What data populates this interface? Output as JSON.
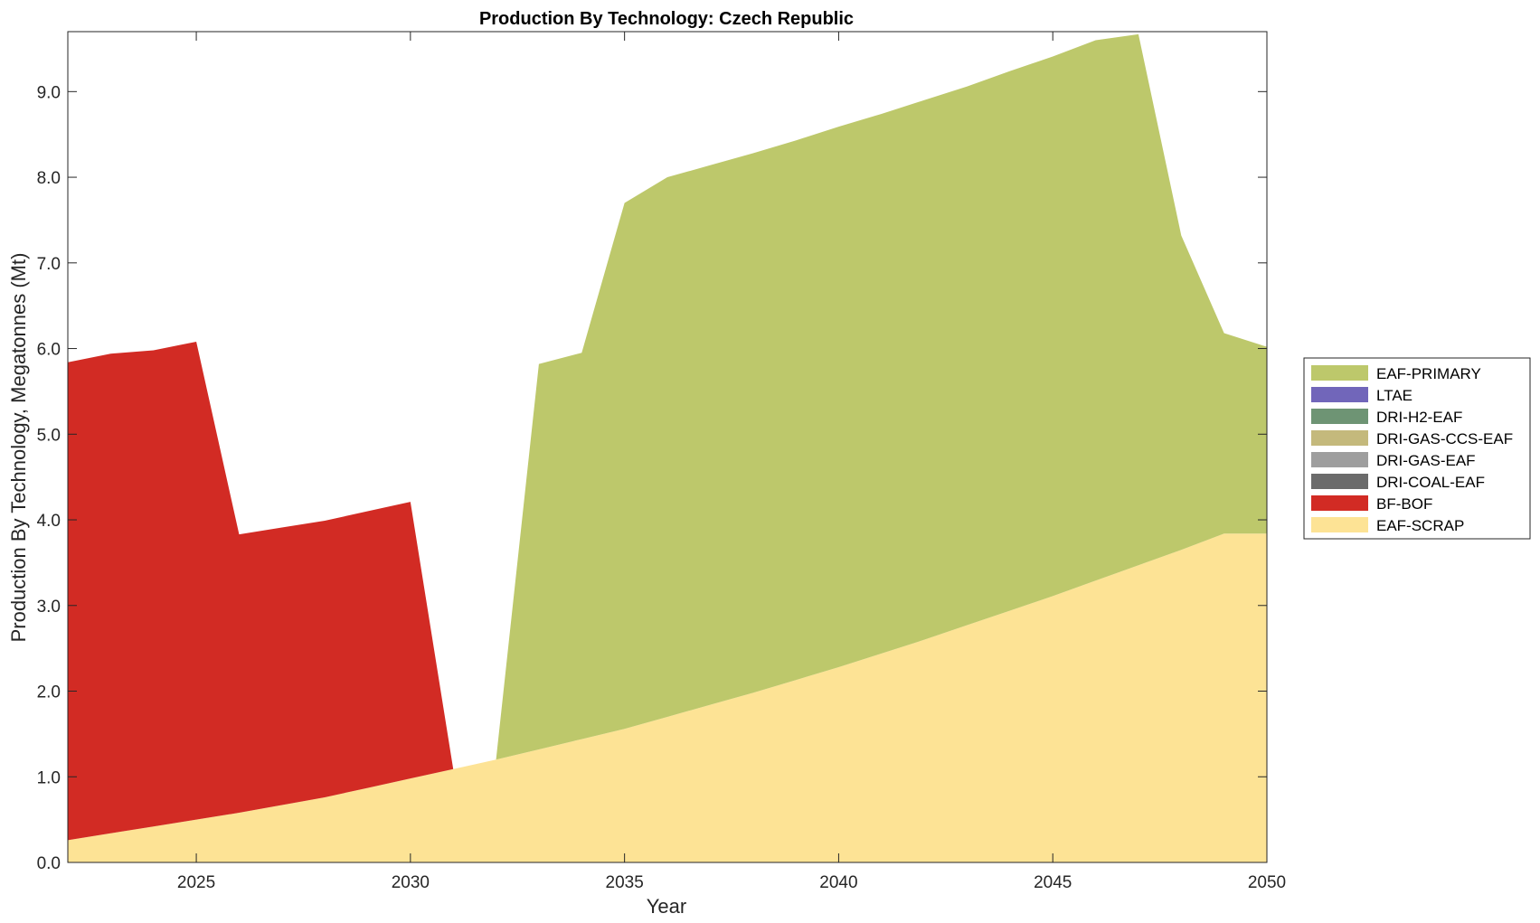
{
  "chart_data": {
    "type": "area",
    "stacked": true,
    "title": "Production By Technology: Czech Republic",
    "xlabel": "Year",
    "ylabel": "Production By Technology, Megatonnes (Mt)",
    "xlim": [
      2022,
      2050
    ],
    "ylim": [
      0,
      9.7
    ],
    "xticks": [
      2025,
      2030,
      2035,
      2040,
      2045,
      2050
    ],
    "yticks": [
      0.0,
      1.0,
      2.0,
      3.0,
      4.0,
      5.0,
      6.0,
      7.0,
      8.0,
      9.0
    ],
    "grid": false,
    "legend_position": "right",
    "x": [
      2022,
      2023,
      2024,
      2025,
      2026,
      2027,
      2028,
      2029,
      2030,
      2031,
      2032,
      2033,
      2034,
      2035,
      2036,
      2037,
      2038,
      2039,
      2040,
      2041,
      2042,
      2043,
      2044,
      2045,
      2046,
      2047,
      2048,
      2049,
      2050
    ],
    "series": [
      {
        "name": "EAF-SCRAP",
        "color": "#FDE395",
        "values": [
          0.26,
          0.34,
          0.42,
          0.5,
          0.58,
          0.67,
          0.76,
          0.87,
          0.98,
          1.09,
          1.2,
          1.32,
          1.44,
          1.56,
          1.7,
          1.84,
          1.98,
          2.13,
          2.28,
          2.44,
          2.6,
          2.77,
          2.94,
          3.11,
          3.29,
          3.47,
          3.65,
          3.84,
          3.84
        ]
      },
      {
        "name": "BF-BOF",
        "color": "#D22B24",
        "values": [
          5.58,
          5.6,
          5.56,
          5.58,
          3.25,
          3.24,
          3.23,
          3.23,
          3.23,
          0,
          0,
          0,
          0,
          0,
          0,
          0,
          0,
          0,
          0,
          0,
          0,
          0,
          0,
          0,
          0,
          0,
          0,
          0,
          0
        ]
      },
      {
        "name": "DRI-COAL-EAF",
        "color": "#6B6B6B",
        "values": [
          0,
          0,
          0,
          0,
          0,
          0,
          0,
          0,
          0,
          0,
          0,
          0,
          0,
          0,
          0,
          0,
          0,
          0,
          0,
          0,
          0,
          0,
          0,
          0,
          0,
          0,
          0,
          0,
          0
        ]
      },
      {
        "name": "DRI-GAS-EAF",
        "color": "#9E9E9E",
        "values": [
          0,
          0,
          0,
          0,
          0,
          0,
          0,
          0,
          0,
          0,
          0,
          0,
          0,
          0,
          0,
          0,
          0,
          0,
          0,
          0,
          0,
          0,
          0,
          0,
          0,
          0,
          0,
          0,
          0
        ]
      },
      {
        "name": "DRI-GAS-CCS-EAF",
        "color": "#C4B97C",
        "values": [
          0,
          0,
          0,
          0,
          0,
          0,
          0,
          0,
          0,
          0,
          0,
          0,
          0,
          0,
          0,
          0,
          0,
          0,
          0,
          0,
          0,
          0,
          0,
          0,
          0,
          0,
          0,
          0,
          0
        ]
      },
      {
        "name": "DRI-H2-EAF",
        "color": "#6E9474",
        "values": [
          0,
          0,
          0,
          0,
          0,
          0,
          0,
          0,
          0,
          0,
          0,
          0,
          0,
          0,
          0,
          0,
          0,
          0,
          0,
          0,
          0,
          0,
          0,
          0,
          0,
          0,
          0,
          0,
          0
        ]
      },
      {
        "name": "LTAE",
        "color": "#7166BA",
        "values": [
          0,
          0,
          0,
          0,
          0,
          0,
          0,
          0,
          0,
          0,
          0,
          0,
          0,
          0,
          0,
          0,
          0,
          0,
          0,
          0,
          0,
          0,
          0,
          0,
          0,
          0,
          0,
          0,
          0
        ]
      },
      {
        "name": "EAF-PRIMARY",
        "color": "#BDC86B",
        "values": [
          0,
          0,
          0,
          0,
          0,
          0,
          0,
          0,
          0,
          0,
          0,
          4.5,
          4.51,
          6.14,
          6.3,
          6.3,
          6.3,
          6.3,
          6.31,
          6.3,
          6.3,
          6.29,
          6.3,
          6.3,
          6.31,
          6.2,
          3.67,
          2.34,
          2.18
        ]
      }
    ],
    "legend_order": [
      "EAF-PRIMARY",
      "LTAE",
      "DRI-H2-EAF",
      "DRI-GAS-CCS-EAF",
      "DRI-GAS-EAF",
      "DRI-COAL-EAF",
      "BF-BOF",
      "EAF-SCRAP"
    ]
  }
}
